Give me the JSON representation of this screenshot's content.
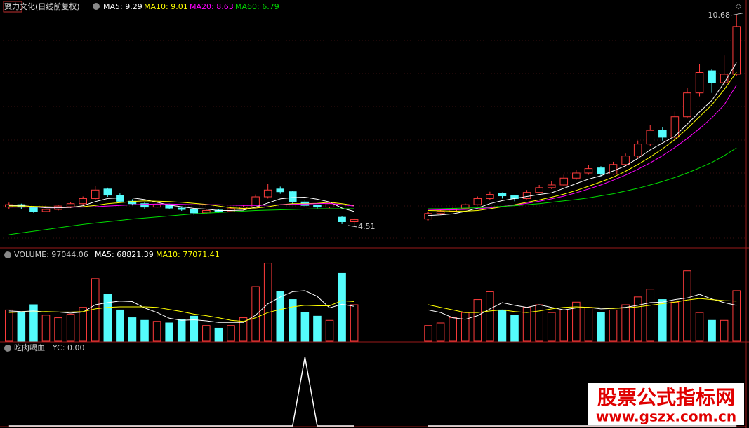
{
  "chart_data": [
    {
      "type": "candlestick",
      "title": "聚力文化(日线前复权)",
      "ylim": [
        3.89,
        10.82
      ],
      "up_color": "#ff3c3c",
      "down_color": "#54fcfc",
      "high": 10.68,
      "low": 4.51,
      "candles": [
        [
          5.05,
          5.18,
          5.0,
          5.12
        ],
        [
          5.12,
          5.15,
          5.0,
          5.05
        ],
        [
          5.05,
          5.08,
          4.88,
          4.92
        ],
        [
          4.92,
          5.02,
          4.9,
          4.98
        ],
        [
          4.98,
          5.12,
          4.95,
          5.08
        ],
        [
          5.06,
          5.2,
          5.02,
          5.15
        ],
        [
          5.15,
          5.36,
          5.12,
          5.3
        ],
        [
          5.3,
          5.68,
          5.26,
          5.55
        ],
        [
          5.58,
          5.62,
          5.35,
          5.4
        ],
        [
          5.4,
          5.45,
          5.18,
          5.22
        ],
        [
          5.22,
          5.28,
          5.1,
          5.15
        ],
        [
          5.15,
          5.2,
          5.0,
          5.05
        ],
        [
          5.05,
          5.18,
          5.02,
          5.12
        ],
        [
          5.12,
          5.15,
          4.98,
          5.02
        ],
        [
          5.02,
          5.06,
          4.94,
          4.98
        ],
        [
          4.98,
          5.0,
          4.82,
          4.88
        ],
        [
          4.88,
          5.0,
          4.85,
          4.95
        ],
        [
          4.96,
          5.0,
          4.88,
          4.92
        ],
        [
          4.92,
          5.05,
          4.9,
          5.0
        ],
        [
          5.0,
          5.1,
          4.96,
          5.05
        ],
        [
          5.05,
          5.42,
          5.02,
          5.35
        ],
        [
          5.35,
          5.72,
          5.3,
          5.55
        ],
        [
          5.58,
          5.65,
          5.44,
          5.5
        ],
        [
          5.5,
          5.52,
          5.15,
          5.2
        ],
        [
          5.2,
          5.25,
          5.05,
          5.1
        ],
        [
          5.1,
          5.12,
          4.98,
          5.05
        ],
        [
          5.05,
          5.2,
          5.02,
          5.15
        ],
        [
          4.75,
          4.78,
          4.55,
          4.62
        ],
        [
          4.62,
          4.72,
          4.51,
          4.68
        ],
        null,
        null,
        null,
        null,
        null,
        [
          4.7,
          4.92,
          4.66,
          4.86
        ],
        [
          4.86,
          4.96,
          4.82,
          4.92
        ],
        [
          4.92,
          5.04,
          4.9,
          5.0
        ],
        [
          5.0,
          5.16,
          4.98,
          5.12
        ],
        [
          5.12,
          5.36,
          5.1,
          5.3
        ],
        [
          5.3,
          5.5,
          5.26,
          5.42
        ],
        [
          5.45,
          5.48,
          5.3,
          5.38
        ],
        [
          5.38,
          5.4,
          5.22,
          5.3
        ],
        [
          5.3,
          5.55,
          5.28,
          5.48
        ],
        [
          5.48,
          5.7,
          5.45,
          5.62
        ],
        [
          5.62,
          5.82,
          5.58,
          5.7
        ],
        [
          5.7,
          6.0,
          5.68,
          5.9
        ],
        [
          5.9,
          6.15,
          5.85,
          6.05
        ],
        [
          6.05,
          6.28,
          6.0,
          6.18
        ],
        [
          6.2,
          6.25,
          5.95,
          6.02
        ],
        [
          6.02,
          6.38,
          6.0,
          6.3
        ],
        [
          6.3,
          6.62,
          6.25,
          6.55
        ],
        [
          6.55,
          7.0,
          6.5,
          6.9
        ],
        [
          6.9,
          7.45,
          6.85,
          7.3
        ],
        [
          7.3,
          7.4,
          7.0,
          7.1
        ],
        [
          7.1,
          7.85,
          7.05,
          7.7
        ],
        [
          7.7,
          8.55,
          7.65,
          8.4
        ],
        [
          8.4,
          9.25,
          8.3,
          9.0
        ],
        [
          9.05,
          9.1,
          8.4,
          8.7
        ],
        [
          8.7,
          9.5,
          8.6,
          8.95
        ],
        [
          8.95,
          10.68,
          8.9,
          10.35
        ]
      ],
      "series": [
        {
          "label": "MA5: 9.29",
          "color": "#ffffff",
          "values": [
            5.1,
            5.1,
            5.06,
            5.03,
            5.03,
            5.04,
            5.09,
            5.21,
            5.3,
            5.32,
            5.32,
            5.27,
            5.19,
            5.11,
            5.06,
            5.01,
            4.99,
            4.95,
            4.95,
            4.96,
            5.05,
            5.17,
            5.29,
            5.33,
            5.34,
            5.28,
            5.2,
            5.02,
            4.92,
            null,
            null,
            null,
            null,
            null,
            4.8,
            4.82,
            4.85,
            4.92,
            5.02,
            5.15,
            5.24,
            5.3,
            5.36,
            5.42,
            5.47,
            5.6,
            5.74,
            5.87,
            5.97,
            6.11,
            6.26,
            6.48,
            6.73,
            6.93,
            7.13,
            7.48,
            7.84,
            8.18,
            8.7,
            9.29
          ]
        },
        {
          "label": "MA10: 9.01",
          "color": "#ffff00",
          "values": [
            5.08,
            5.08,
            5.07,
            5.06,
            5.05,
            5.05,
            5.06,
            5.1,
            5.15,
            5.18,
            5.21,
            5.23,
            5.22,
            5.21,
            5.19,
            5.16,
            5.13,
            5.08,
            5.03,
            5.01,
            5.02,
            5.06,
            5.12,
            5.15,
            5.15,
            5.16,
            5.19,
            5.15,
            5.1,
            null,
            null,
            null,
            null,
            null,
            4.95,
            4.94,
            4.93,
            4.93,
            4.95,
            5.0,
            5.06,
            5.12,
            5.19,
            5.26,
            5.34,
            5.43,
            5.54,
            5.66,
            5.79,
            5.93,
            6.1,
            6.3,
            6.52,
            6.76,
            7.03,
            7.35,
            7.7,
            8.05,
            8.5,
            9.01
          ]
        },
        {
          "label": "MA20: 8.63",
          "color": "#ff00ff",
          "values": [
            5.05,
            5.05,
            5.05,
            5.05,
            5.05,
            5.05,
            5.05,
            5.06,
            5.08,
            5.1,
            5.12,
            5.13,
            5.14,
            5.14,
            5.13,
            5.12,
            5.12,
            5.12,
            5.11,
            5.1,
            5.1,
            5.11,
            5.12,
            5.13,
            5.14,
            5.15,
            5.16,
            5.12,
            5.08,
            null,
            null,
            null,
            null,
            null,
            4.98,
            4.97,
            4.97,
            4.98,
            5.0,
            5.03,
            5.07,
            5.11,
            5.16,
            5.22,
            5.29,
            5.37,
            5.47,
            5.58,
            5.7,
            5.84,
            5.99,
            6.16,
            6.35,
            6.56,
            6.8,
            7.06,
            7.35,
            7.67,
            8.05,
            8.63
          ]
        },
        {
          "label": "MA60: 6.79",
          "color": "#00dd00",
          "values": [
            4.24,
            4.29,
            4.34,
            4.39,
            4.44,
            4.49,
            4.54,
            4.58,
            4.62,
            4.66,
            4.7,
            4.73,
            4.76,
            4.79,
            4.82,
            4.85,
            4.87,
            4.89,
            4.91,
            4.93,
            4.95,
            4.96,
            4.97,
            4.98,
            4.99,
            5.0,
            5.0,
            5.0,
            5.0,
            null,
            null,
            null,
            null,
            null,
            5.0,
            5.0,
            5.01,
            5.02,
            5.03,
            5.05,
            5.07,
            5.09,
            5.12,
            5.15,
            5.19,
            5.23,
            5.27,
            5.32,
            5.38,
            5.44,
            5.52,
            5.6,
            5.7,
            5.8,
            5.92,
            6.05,
            6.2,
            6.36,
            6.56,
            6.79
          ]
        }
      ]
    },
    {
      "type": "volume",
      "title": "VOLUME: 97044.06",
      "ylim": [
        0,
        175000
      ],
      "values": [
        60000,
        55000,
        70000,
        50000,
        45000,
        52000,
        65000,
        120000,
        90000,
        60000,
        45000,
        40000,
        38000,
        35000,
        42000,
        48000,
        30000,
        25000,
        30000,
        45000,
        105000,
        150000,
        95000,
        80000,
        55000,
        48000,
        40000,
        130000,
        70000,
        null,
        null,
        null,
        null,
        null,
        30000,
        35000,
        45000,
        55000,
        80000,
        95000,
        60000,
        50000,
        65000,
        70000,
        55000,
        60000,
        75000,
        65000,
        55000,
        60000,
        70000,
        85000,
        100000,
        80000,
        75000,
        135000,
        55000,
        40000,
        40000,
        97044.06
      ],
      "series": [
        {
          "label": "MA5: 68821.39",
          "color": "#ffffff",
          "values": [
            58000,
            57000,
            58000,
            56000,
            56000,
            54000,
            56000,
            70000,
            74000,
            77000,
            76000,
            64000,
            55000,
            44000,
            40000,
            41000,
            39000,
            36000,
            36000,
            36000,
            50000,
            72000,
            85000,
            95000,
            97000,
            86000,
            64000,
            71000,
            67000,
            null,
            null,
            null,
            null,
            null,
            60000,
            55000,
            45000,
            42000,
            49000,
            62000,
            74000,
            69000,
            65000,
            70000,
            65000,
            60000,
            64000,
            65000,
            62000,
            63000,
            65000,
            69000,
            74000,
            75000,
            80000,
            83000,
            90000,
            81000,
            74000,
            68821.39
          ]
        },
        {
          "label": "MA10: 77071.41",
          "color": "#ffff00",
          "values": [
            55000,
            56000,
            56000,
            57000,
            56000,
            56000,
            57000,
            62000,
            65000,
            66000,
            66000,
            66000,
            65000,
            61000,
            57000,
            52000,
            49000,
            45000,
            40000,
            38000,
            45000,
            55000,
            61000,
            66000,
            69000,
            68000,
            68000,
            78000,
            76000,
            null,
            null,
            null,
            null,
            null,
            70000,
            65000,
            60000,
            55000,
            55000,
            58000,
            60000,
            57000,
            55000,
            58000,
            62000,
            65000,
            66000,
            65000,
            64000,
            63000,
            64000,
            66000,
            69000,
            72000,
            75000,
            79000,
            82000,
            80000,
            78000,
            77071.41
          ]
        }
      ]
    },
    {
      "type": "line",
      "title": "吃肉喝血",
      "label": "YC: 0.00",
      "ylim": [
        0,
        1.1
      ],
      "color": "#ffffff",
      "values": [
        0,
        0,
        0,
        0,
        0,
        0,
        0,
        0,
        0,
        0,
        0,
        0,
        0,
        0,
        0,
        0,
        0,
        0,
        0,
        0,
        0,
        0,
        0,
        0,
        1,
        0,
        0,
        0,
        0,
        null,
        null,
        null,
        null,
        null,
        0,
        0,
        0,
        0,
        0,
        0,
        0,
        0,
        0,
        0,
        0,
        0,
        0,
        0,
        0,
        0,
        0,
        0,
        0,
        0,
        0,
        0,
        0,
        0,
        0,
        0
      ]
    }
  ],
  "watermark": {
    "name": "股票公式指标网",
    "url": "www.gszx.com.cn"
  }
}
